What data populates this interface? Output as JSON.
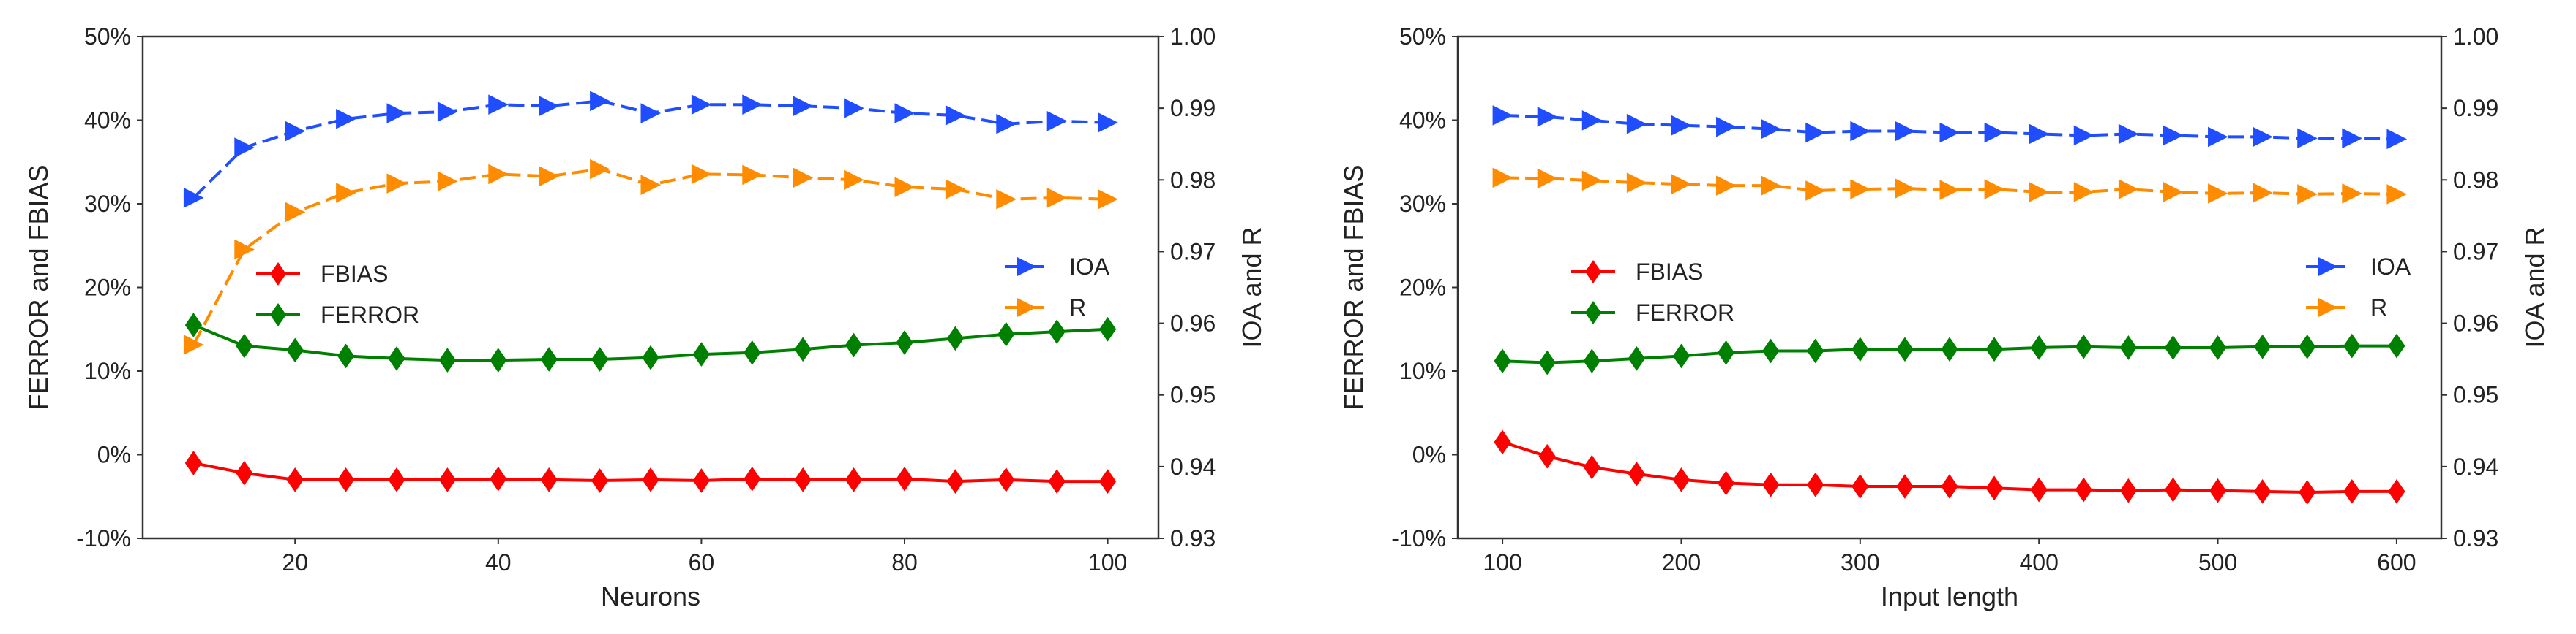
{
  "chart_data": [
    {
      "type": "line",
      "xlabel": "Neurons",
      "ylabel_left": "FERROR and FBIAS",
      "ylabel_right": "IOA and R",
      "xlim": [
        5,
        105
      ],
      "xticks": [
        20,
        40,
        60,
        80,
        100
      ],
      "ylim_left": [
        -10,
        50
      ],
      "yticks_left": [
        "-10%",
        "0%",
        "10%",
        "20%",
        "30%",
        "40%",
        "50%"
      ],
      "ylim_right": [
        0.93,
        1.0
      ],
      "yticks_right": [
        "0.93",
        "0.94",
        "0.95",
        "0.96",
        "0.97",
        "0.98",
        "0.99",
        "1.00"
      ],
      "x": [
        10,
        15,
        20,
        25,
        30,
        35,
        40,
        45,
        50,
        55,
        60,
        65,
        70,
        75,
        80,
        85,
        90,
        95,
        100
      ],
      "series": [
        {
          "name": "FBIAS",
          "axis": "left",
          "color": "#ff0000",
          "marker": "diamond",
          "values": [
            -1.0,
            -2.2,
            -3.0,
            -3.0,
            -3.0,
            -3.0,
            -2.9,
            -3.0,
            -3.1,
            -3.0,
            -3.1,
            -2.9,
            -3.0,
            -3.0,
            -2.9,
            -3.2,
            -3.0,
            -3.2,
            -3.2
          ]
        },
        {
          "name": "FERROR",
          "axis": "left",
          "color": "#008000",
          "marker": "diamond",
          "values": [
            15.5,
            13.0,
            12.5,
            11.8,
            11.5,
            11.3,
            11.3,
            11.4,
            11.4,
            11.6,
            12.0,
            12.2,
            12.6,
            13.1,
            13.4,
            13.9,
            14.4,
            14.7,
            15.0
          ]
        },
        {
          "name": "IOA",
          "axis": "right",
          "color": "#1f4dff",
          "marker": "triangle-right",
          "values": [
            0.9775,
            0.9845,
            0.9868,
            0.9885,
            0.9893,
            0.9895,
            0.9905,
            0.9903,
            0.991,
            0.9893,
            0.9905,
            0.9905,
            0.9903,
            0.99,
            0.9893,
            0.989,
            0.9878,
            0.9882,
            0.988
          ]
        },
        {
          "name": "R",
          "axis": "right",
          "color": "#ff8c00",
          "marker": "triangle-right",
          "values": [
            0.957,
            0.9703,
            0.9755,
            0.9782,
            0.9795,
            0.9798,
            0.9808,
            0.9805,
            0.9815,
            0.9793,
            0.9808,
            0.9807,
            0.9803,
            0.98,
            0.979,
            0.9787,
            0.9773,
            0.9775,
            0.9773
          ]
        }
      ],
      "legend_left": [
        "FBIAS",
        "FERROR"
      ],
      "legend_right": [
        "IOA",
        "R"
      ]
    },
    {
      "type": "line",
      "xlabel": "Input length",
      "ylabel_left": "FERROR and FBIAS",
      "ylabel_right": "IOA and R",
      "xlim": [
        75,
        625
      ],
      "xticks": [
        100,
        200,
        300,
        400,
        500,
        600
      ],
      "ylim_left": [
        -10,
        50
      ],
      "yticks_left": [
        "-10%",
        "0%",
        "10%",
        "20%",
        "30%",
        "40%",
        "50%"
      ],
      "ylim_right": [
        0.93,
        1.0
      ],
      "yticks_right": [
        "0.93",
        "0.94",
        "0.95",
        "0.96",
        "0.97",
        "0.98",
        "0.99",
        "1.00"
      ],
      "x": [
        100,
        125,
        150,
        175,
        200,
        225,
        250,
        275,
        300,
        325,
        350,
        375,
        400,
        425,
        450,
        475,
        500,
        525,
        550,
        575,
        600
      ],
      "series": [
        {
          "name": "FBIAS",
          "axis": "left",
          "color": "#ff0000",
          "marker": "diamond",
          "values": [
            1.5,
            -0.2,
            -1.5,
            -2.3,
            -3.0,
            -3.4,
            -3.6,
            -3.6,
            -3.8,
            -3.8,
            -3.8,
            -4.0,
            -4.2,
            -4.2,
            -4.3,
            -4.2,
            -4.3,
            -4.4,
            -4.5,
            -4.4,
            -4.4
          ]
        },
        {
          "name": "FERROR",
          "axis": "left",
          "color": "#008000",
          "marker": "diamond",
          "values": [
            11.2,
            11.0,
            11.2,
            11.5,
            11.8,
            12.2,
            12.4,
            12.4,
            12.6,
            12.6,
            12.6,
            12.6,
            12.8,
            12.9,
            12.8,
            12.8,
            12.8,
            12.9,
            12.9,
            13.0,
            13.0
          ]
        },
        {
          "name": "IOA",
          "axis": "right",
          "color": "#1f4dff",
          "marker": "triangle-right",
          "values": [
            0.989,
            0.9888,
            0.9883,
            0.9878,
            0.9876,
            0.9874,
            0.9871,
            0.9866,
            0.9868,
            0.9868,
            0.9866,
            0.9866,
            0.9864,
            0.9862,
            0.9864,
            0.9862,
            0.986,
            0.986,
            0.9858,
            0.9858,
            0.9857
          ]
        },
        {
          "name": "R",
          "axis": "right",
          "color": "#ff8c00",
          "marker": "triangle-right",
          "values": [
            0.9803,
            0.9802,
            0.9799,
            0.9796,
            0.9794,
            0.9792,
            0.9792,
            0.9785,
            0.9787,
            0.9788,
            0.9786,
            0.9787,
            0.9783,
            0.9783,
            0.9787,
            0.9783,
            0.9781,
            0.9782,
            0.978,
            0.9781,
            0.978
          ]
        }
      ],
      "legend_left": [
        "FBIAS",
        "FERROR"
      ],
      "legend_right": [
        "IOA",
        "R"
      ]
    }
  ]
}
